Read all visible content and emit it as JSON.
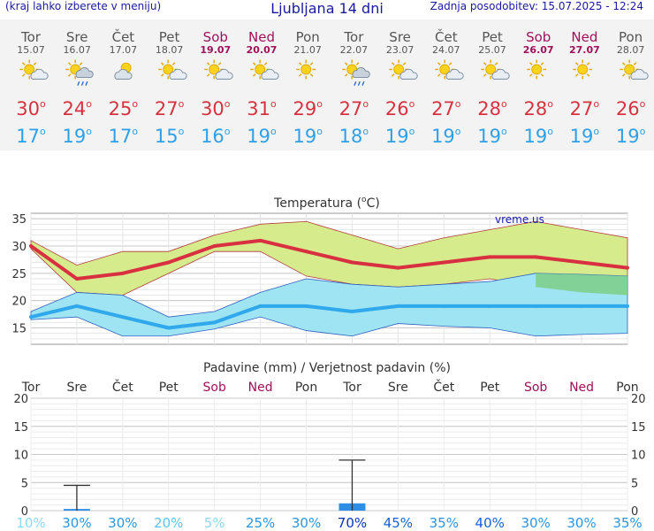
{
  "header": {
    "menu_hint": "(kraj lahko izberete v meniju)",
    "title": "Ljubljana 14 dni",
    "updated": "Zadnja posodobitev: 15.07.2025 - 12:24"
  },
  "days": [
    {
      "name": "Tor",
      "date": "15.07",
      "weekend": false,
      "icon": "partly-sunny-icon",
      "max": "30",
      "min": "17"
    },
    {
      "name": "Sre",
      "date": "16.07",
      "weekend": false,
      "icon": "sun-cloud-rain-icon",
      "max": "24",
      "min": "19"
    },
    {
      "name": "Čet",
      "date": "17.07",
      "weekend": false,
      "icon": "cloudy-sun-icon",
      "max": "25",
      "min": "17"
    },
    {
      "name": "Pet",
      "date": "18.07",
      "weekend": false,
      "icon": "partly-sunny-icon",
      "max": "27",
      "min": "15"
    },
    {
      "name": "Sob",
      "date": "19.07",
      "weekend": true,
      "icon": "partly-sunny-icon",
      "max": "30",
      "min": "16"
    },
    {
      "name": "Ned",
      "date": "20.07",
      "weekend": true,
      "icon": "partly-sunny-icon",
      "max": "31",
      "min": "19"
    },
    {
      "name": "Pon",
      "date": "21.07",
      "weekend": false,
      "icon": "sunny-icon",
      "max": "29",
      "min": "19"
    },
    {
      "name": "Tor",
      "date": "22.07",
      "weekend": false,
      "icon": "sun-cloud-rain-icon",
      "max": "27",
      "min": "18"
    },
    {
      "name": "Sre",
      "date": "23.07",
      "weekend": false,
      "icon": "partly-sunny-icon",
      "max": "26",
      "min": "19"
    },
    {
      "name": "Čet",
      "date": "24.07",
      "weekend": false,
      "icon": "partly-sunny-icon",
      "max": "27",
      "min": "19"
    },
    {
      "name": "Pet",
      "date": "25.07",
      "weekend": false,
      "icon": "partly-sunny-icon",
      "max": "28",
      "min": "19"
    },
    {
      "name": "Sob",
      "date": "26.07",
      "weekend": true,
      "icon": "sunny-icon",
      "max": "28",
      "min": "19"
    },
    {
      "name": "Ned",
      "date": "27.07",
      "weekend": true,
      "icon": "sunny-icon",
      "max": "27",
      "min": "19"
    },
    {
      "name": "Pon",
      "date": "28.07",
      "weekend": false,
      "icon": "partly-sunny-icon",
      "max": "26",
      "min": "19"
    }
  ],
  "colors": {
    "max_line": "#d83040",
    "min_line": "#30a8ec",
    "max_band": "#d6ec8c",
    "min_band": "#9ee4f2",
    "overlap_band": "#7ccf88",
    "precip_bar": "#2f8fe6",
    "weekend": "#a0105a",
    "blue_text": "#1a1aa0"
  },
  "chart_data": [
    {
      "type": "line",
      "title": "Temperatura (°C)",
      "title_text": "Temperatura (",
      "title_unit": "C)",
      "watermark": "vreme.us",
      "ylim": [
        12,
        36
      ],
      "yticks": [
        15,
        20,
        25,
        30,
        35
      ],
      "grid": true,
      "series": [
        {
          "role": "max",
          "values": [
            30,
            24,
            25,
            27,
            30,
            31,
            29,
            27,
            26,
            27,
            28,
            28,
            27,
            26
          ]
        },
        {
          "role": "max-upper",
          "values": [
            31,
            26.5,
            29,
            29,
            32,
            34,
            34.5,
            32,
            29.5,
            31.5,
            33,
            34.5,
            33,
            31.5
          ]
        },
        {
          "role": "max-lower",
          "values": [
            29.5,
            21.5,
            21,
            25,
            29,
            29,
            24.5,
            23,
            22.5,
            23,
            24,
            22.5,
            21.5,
            21
          ]
        },
        {
          "role": "min",
          "values": [
            17,
            19,
            17,
            15,
            16,
            19,
            19,
            18,
            19,
            19,
            19,
            19,
            19,
            19
          ]
        },
        {
          "role": "min-upper",
          "values": [
            18,
            21.5,
            21,
            17,
            18,
            21.5,
            24,
            23,
            22.5,
            23,
            23.5,
            25,
            24.8,
            24.5
          ]
        },
        {
          "role": "min-lower",
          "values": [
            16.5,
            17,
            13.5,
            13.5,
            14.8,
            17,
            14.5,
            13.5,
            15.8,
            15.3,
            15,
            13.5,
            13.8,
            14
          ]
        }
      ]
    },
    {
      "type": "bar",
      "title": "Padavine (mm) / Verjetnost padavin (%)",
      "categories": [
        "Tor",
        "Sre",
        "Čet",
        "Pet",
        "Sob",
        "Ned",
        "Pon",
        "Tor",
        "Sre",
        "Čet",
        "Pet",
        "Sob",
        "Ned",
        "Pon"
      ],
      "weekend": [
        false,
        false,
        false,
        false,
        true,
        true,
        false,
        false,
        false,
        false,
        false,
        true,
        true,
        false
      ],
      "ylim": [
        0,
        20
      ],
      "yticks": [
        0,
        5,
        10,
        15,
        20
      ],
      "values": [
        0,
        0.3,
        0,
        0,
        0,
        0,
        0,
        1.3,
        0,
        0,
        0,
        0,
        0,
        0
      ],
      "max_range": [
        0,
        4.5,
        0,
        0,
        0,
        0,
        0,
        9,
        0,
        0,
        0,
        0,
        0,
        0
      ],
      "probability": [
        "10%",
        "30%",
        "30%",
        "20%",
        "5%",
        "25%",
        "30%",
        "70%",
        "45%",
        "35%",
        "40%",
        "30%",
        "30%",
        "35%"
      ],
      "probability_values": [
        10,
        30,
        30,
        20,
        5,
        25,
        30,
        70,
        45,
        35,
        40,
        30,
        30,
        35
      ]
    }
  ]
}
